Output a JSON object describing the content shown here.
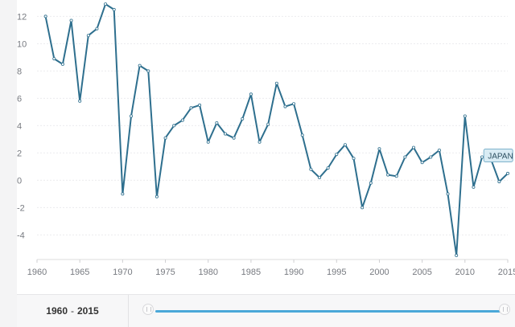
{
  "chart_data": {
    "type": "line",
    "title": "",
    "xlabel": "",
    "ylabel": "",
    "x_ticks": [
      "1960",
      "1965",
      "1970",
      "1975",
      "1980",
      "1985",
      "1990",
      "1995",
      "2000",
      "2005",
      "2010",
      "2015"
    ],
    "y_ticks": [
      "12",
      "10",
      "8",
      "6",
      "4",
      "2",
      "0",
      "-2",
      "-4"
    ],
    "xlim": [
      1960,
      2015
    ],
    "ylim": [
      -5.8,
      13.2
    ],
    "grid": true,
    "series": [
      {
        "name": "JAPAN",
        "color": "#2e6f8e",
        "x": [
          1961,
          1962,
          1963,
          1964,
          1965,
          1966,
          1967,
          1968,
          1969,
          1970,
          1971,
          1972,
          1973,
          1974,
          1975,
          1976,
          1977,
          1978,
          1979,
          1980,
          1981,
          1982,
          1983,
          1984,
          1985,
          1986,
          1987,
          1988,
          1989,
          1990,
          1991,
          1992,
          1993,
          1994,
          1995,
          1996,
          1997,
          1998,
          1999,
          2000,
          2001,
          2002,
          2003,
          2004,
          2005,
          2006,
          2007,
          2008,
          2009,
          2010,
          2011,
          2012,
          2013,
          2014,
          2015
        ],
        "values": [
          12.0,
          8.9,
          8.5,
          11.7,
          5.8,
          10.6,
          11.1,
          12.9,
          12.5,
          -1.0,
          4.7,
          8.4,
          8.0,
          -1.2,
          3.1,
          4.0,
          4.4,
          5.3,
          5.5,
          2.8,
          4.2,
          3.4,
          3.1,
          4.5,
          6.3,
          2.8,
          4.1,
          7.1,
          5.4,
          5.6,
          3.3,
          0.8,
          0.2,
          0.9,
          1.9,
          2.6,
          1.6,
          -2.0,
          -0.2,
          2.3,
          0.4,
          0.3,
          1.7,
          2.4,
          1.3,
          1.7,
          2.2,
          -1.0,
          -5.5,
          4.7,
          -0.5,
          1.7,
          1.6,
          -0.1,
          0.5
        ]
      }
    ],
    "tooltip_label": "JAPAN"
  },
  "range_selector": {
    "start": "1960",
    "separator": "-",
    "end": "2015"
  }
}
